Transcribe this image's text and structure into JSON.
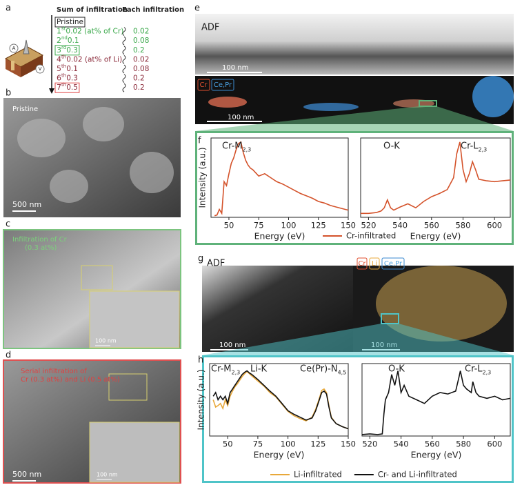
{
  "panel_labels": [
    "a",
    "b",
    "c",
    "d",
    "e",
    "f",
    "g",
    "h"
  ],
  "infiltration": {
    "header_sum": "Sum of infiltration",
    "header_each": "Each infiltration",
    "rows": [
      {
        "sum": "Pristine",
        "color": "#222222",
        "box": "#222222"
      },
      {
        "ordinal": "1",
        "suffix": "st",
        "sum": " 0.02 (at% of Cr)",
        "each": "0.02",
        "color": "#3aa84a"
      },
      {
        "ordinal": "2",
        "suffix": "nd",
        "sum": " 0.1",
        "each": "0.08",
        "color": "#3aa84a"
      },
      {
        "ordinal": "3",
        "suffix": "rd",
        "sum": " 0.3",
        "each": "0.2",
        "color": "#3aa84a",
        "box": "#3aa84a"
      },
      {
        "ordinal": "4",
        "suffix": "th",
        "sum": " 0.02 (at% of Li)",
        "each": "0.02",
        "color": "#8b2a3a"
      },
      {
        "ordinal": "5",
        "suffix": "th",
        "sum": " 0.1",
        "each": "0.08",
        "color": "#8b2a3a"
      },
      {
        "ordinal": "6",
        "suffix": "th",
        "sum": " 0.3",
        "each": "0.2",
        "color": "#8b2a3a"
      },
      {
        "ordinal": "7",
        "suffix": "th",
        "sum": " 0.5",
        "each": "0.2",
        "color": "#8b2a3a",
        "box": "#e04848"
      }
    ]
  },
  "schematic": {
    "labels": [
      "A",
      "V"
    ]
  },
  "panel_b": {
    "caption": "Pristine",
    "scale": "500 nm"
  },
  "panel_c": {
    "caption_lines": [
      "Infiltration of Cr",
      "(0.3 at%)"
    ],
    "inset_scale": "100 nm"
  },
  "panel_d": {
    "caption_lines": [
      "Serial infiltration of",
      "Cr (0.3 at%) and Li (0.5 at%)"
    ],
    "inset_scale": "100 nm",
    "scale": "500 nm"
  },
  "panel_e": {
    "adf": "ADF",
    "scales": [
      "100 nm",
      "100 nm"
    ],
    "map_labels": [
      "Cr",
      "Ce,Pr"
    ]
  },
  "panel_g": {
    "adf": "ADF",
    "scales": [
      "100 nm",
      "100 nm"
    ],
    "map_labels": [
      "Cr",
      "Li",
      "Ce,Pr"
    ]
  },
  "chart_data": [
    {
      "type": "line",
      "xlabel": "Energy (eV)",
      "ylabel": "Intensity (a.u.)",
      "xlim": [
        35,
        150
      ],
      "xticks": [
        50,
        75,
        100,
        125,
        150
      ],
      "ylim": [
        0,
        1
      ],
      "x": [
        38,
        40,
        42,
        44,
        46,
        48,
        50,
        52,
        54,
        56,
        58,
        60,
        62,
        64,
        66,
        68,
        70,
        75,
        80,
        85,
        90,
        95,
        100,
        105,
        110,
        115,
        120,
        125,
        130,
        135,
        140,
        145,
        150
      ],
      "series": [
        {
          "name": "Cr-infiltrated",
          "color": "#d4522a",
          "values": [
            0.02,
            0.03,
            0.1,
            0.05,
            0.45,
            0.4,
            0.55,
            0.68,
            0.75,
            0.85,
            0.93,
            0.95,
            0.82,
            0.72,
            0.66,
            0.62,
            0.6,
            0.52,
            0.55,
            0.5,
            0.45,
            0.42,
            0.38,
            0.34,
            0.3,
            0.27,
            0.24,
            0.2,
            0.18,
            0.15,
            0.13,
            0.11,
            0.09
          ]
        }
      ],
      "annotations": [
        {
          "text": "Cr-M",
          "sub": "2,3"
        }
      ]
    },
    {
      "type": "line",
      "xlabel": "Energy (eV)",
      "xlim": [
        515,
        610
      ],
      "xticks": [
        520,
        540,
        560,
        580,
        600
      ],
      "ylim": [
        0,
        1
      ],
      "x": [
        515,
        520,
        525,
        528,
        530,
        532,
        534,
        536,
        540,
        545,
        550,
        555,
        560,
        565,
        570,
        574,
        576,
        578,
        580,
        582,
        584,
        586,
        588,
        590,
        595,
        600,
        605,
        610
      ],
      "series": [
        {
          "color": "#d4522a",
          "values": [
            0.05,
            0.05,
            0.06,
            0.08,
            0.12,
            0.22,
            0.12,
            0.09,
            0.13,
            0.17,
            0.12,
            0.2,
            0.26,
            0.3,
            0.35,
            0.5,
            0.8,
            0.95,
            0.6,
            0.45,
            0.55,
            0.7,
            0.6,
            0.48,
            0.46,
            0.45,
            0.46,
            0.47
          ]
        }
      ],
      "annotations": [
        {
          "text": "O-K"
        },
        {
          "text": "Cr-L",
          "sub": "2,3"
        }
      ]
    },
    {
      "type": "line",
      "xlabel": "Energy (eV)",
      "ylabel": "Intensity (a.u.)",
      "xlim": [
        35,
        150
      ],
      "xticks": [
        50,
        75,
        100,
        125,
        150
      ],
      "ylim": [
        0,
        1
      ],
      "x": [
        38,
        40,
        42,
        44,
        46,
        48,
        50,
        52,
        54,
        56,
        58,
        60,
        62,
        64,
        66,
        68,
        70,
        75,
        80,
        85,
        90,
        95,
        100,
        105,
        110,
        115,
        120,
        123,
        126,
        128,
        130,
        132,
        134,
        136,
        140,
        145,
        150
      ],
      "series": [
        {
          "name": "Li-infiltrated",
          "color": "#e8a83a",
          "values": [
            0.5,
            0.4,
            0.42,
            0.45,
            0.38,
            0.5,
            0.42,
            0.55,
            0.62,
            0.68,
            0.72,
            0.77,
            0.82,
            0.86,
            0.89,
            0.86,
            0.83,
            0.76,
            0.69,
            0.6,
            0.54,
            0.44,
            0.34,
            0.28,
            0.24,
            0.21,
            0.26,
            0.37,
            0.52,
            0.63,
            0.65,
            0.6,
            0.42,
            0.26,
            0.17,
            0.13,
            0.1
          ]
        },
        {
          "name": "Cr- and Li-infiltrated",
          "color": "#111111",
          "values": [
            0.55,
            0.6,
            0.5,
            0.55,
            0.5,
            0.55,
            0.45,
            0.6,
            0.65,
            0.7,
            0.75,
            0.8,
            0.85,
            0.88,
            0.9,
            0.87,
            0.85,
            0.78,
            0.7,
            0.62,
            0.55,
            0.45,
            0.35,
            0.3,
            0.26,
            0.22,
            0.25,
            0.35,
            0.5,
            0.6,
            0.62,
            0.58,
            0.4,
            0.25,
            0.17,
            0.13,
            0.1
          ]
        }
      ],
      "annotations": [
        {
          "text": "Cr-M",
          "sub": "2,3"
        },
        {
          "text": "Li-K"
        },
        {
          "text": "Ce(Pr)-N",
          "sub": "4,5"
        }
      ]
    },
    {
      "type": "line",
      "xlabel": "Energy (eV)",
      "xlim": [
        515,
        610
      ],
      "xticks": [
        520,
        540,
        560,
        580,
        600
      ],
      "ylim": [
        0,
        1
      ],
      "x": [
        515,
        520,
        525,
        528,
        529,
        530,
        532,
        534,
        536,
        538,
        540,
        542,
        545,
        550,
        555,
        560,
        565,
        570,
        575,
        577,
        578,
        580,
        582,
        585,
        586,
        588,
        590,
        595,
        600,
        605,
        610
      ],
      "series": [
        {
          "color": "#111111",
          "values": [
            0.02,
            0.03,
            0.02,
            0.03,
            0.3,
            0.5,
            0.6,
            0.85,
            0.7,
            0.9,
            0.6,
            0.7,
            0.55,
            0.5,
            0.45,
            0.55,
            0.6,
            0.58,
            0.62,
            0.8,
            0.9,
            0.7,
            0.65,
            0.6,
            0.75,
            0.6,
            0.55,
            0.52,
            0.55,
            0.5,
            0.52
          ]
        }
      ],
      "annotations": [
        {
          "text": "O-K"
        },
        {
          "text": "Cr-L",
          "sub": "2,3"
        }
      ]
    }
  ]
}
